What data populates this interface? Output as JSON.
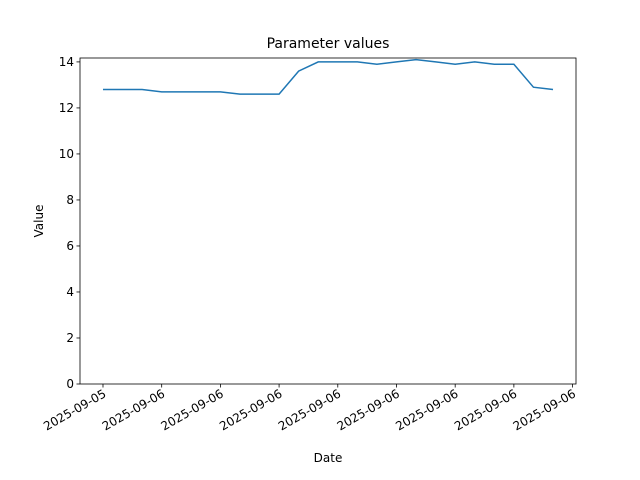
{
  "chart_data": {
    "type": "line",
    "title": "Parameter values",
    "x_label": "Date",
    "y_label": "Value",
    "x": [
      0,
      1,
      2,
      3,
      4,
      5,
      6,
      7,
      8,
      9,
      10,
      11,
      12,
      13,
      14,
      15,
      16,
      17,
      18,
      19,
      20,
      21,
      22,
      23
    ],
    "values": [
      12.8,
      12.8,
      12.8,
      12.7,
      12.7,
      12.7,
      12.7,
      12.6,
      12.6,
      12.6,
      13.6,
      14.0,
      14.0,
      14.0,
      13.9,
      14.0,
      14.1,
      14.0,
      13.9,
      14.0,
      13.9,
      13.9,
      12.9,
      12.8
    ],
    "color": "#1f77b4",
    "xlim": [
      -1.175,
      24.175
    ],
    "xticks": [
      {
        "value": 0,
        "label": "2025-09-05"
      },
      {
        "value": 3,
        "label": "2025-09-06"
      },
      {
        "value": 6,
        "label": "2025-09-06"
      },
      {
        "value": 9,
        "label": "2025-09-06"
      },
      {
        "value": 12,
        "label": "2025-09-06"
      },
      {
        "value": 15,
        "label": "2025-09-06"
      },
      {
        "value": 18,
        "label": "2025-09-06"
      },
      {
        "value": 21,
        "label": "2025-09-06"
      },
      {
        "value": 24,
        "label": "2025-09-06"
      }
    ],
    "ylim": [
      0,
      14.17
    ],
    "yticks": [
      0,
      2,
      4,
      6,
      8,
      10,
      12,
      14
    ],
    "grid": false
  }
}
